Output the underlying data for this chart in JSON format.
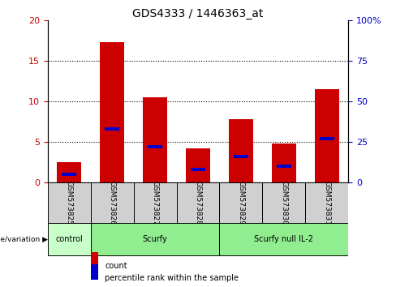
{
  "title": "GDS4333 / 1446363_at",
  "samples": [
    "GSM573825",
    "GSM573826",
    "GSM573827",
    "GSM573828",
    "GSM573829",
    "GSM573830",
    "GSM573831"
  ],
  "counts": [
    2.5,
    17.3,
    10.5,
    4.2,
    7.8,
    4.8,
    11.5
  ],
  "percentile_ranks": [
    5,
    33,
    22,
    8,
    16,
    10,
    27
  ],
  "count_color": "#cc0000",
  "percentile_color": "#0000cc",
  "ylim_left": [
    0,
    20
  ],
  "ylim_right": [
    0,
    100
  ],
  "yticks_left": [
    0,
    5,
    10,
    15,
    20
  ],
  "yticks_right": [
    0,
    25,
    50,
    75,
    100
  ],
  "ytick_labels_right": [
    "0",
    "25",
    "50",
    "75",
    "100%"
  ],
  "groups": [
    {
      "label": "control",
      "start": 0,
      "end": 1,
      "color": "#c8ffc8"
    },
    {
      "label": "Scurfy",
      "start": 1,
      "end": 4,
      "color": "#90ee90"
    },
    {
      "label": "Scurfy null IL-2",
      "start": 4,
      "end": 7,
      "color": "#90ee90"
    }
  ],
  "group_label_prefix": "genotype/variation",
  "legend_count_label": "count",
  "legend_percentile_label": "percentile rank within the sample",
  "bar_width": 0.55,
  "grey_color": "#d0d0d0",
  "green_color": "#90ee90",
  "light_green": "#c8ffc8"
}
